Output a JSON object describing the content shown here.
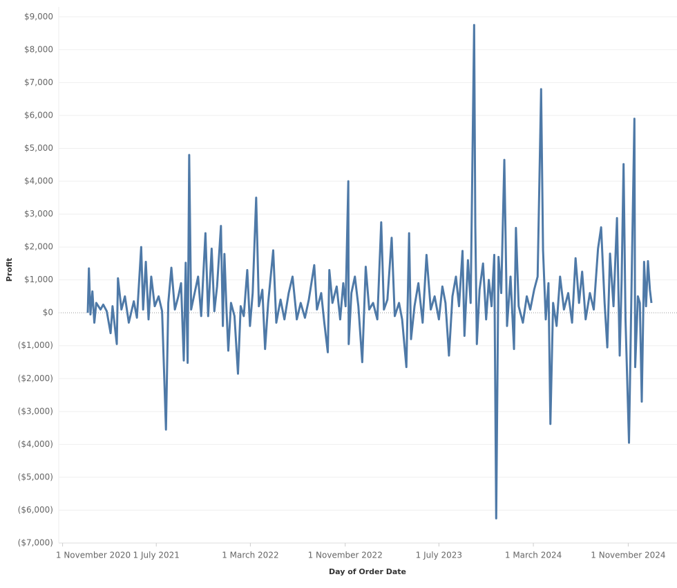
{
  "chart_data": {
    "type": "line",
    "x_label": "Day of Order Date",
    "y_label": "Profit",
    "x": [
      "2021-01-05",
      "2021-01-08",
      "2021-01-12",
      "2021-01-17",
      "2021-01-22",
      "2021-01-27",
      "2021-02-07",
      "2021-02-14",
      "2021-02-23",
      "2021-03-05",
      "2021-03-10",
      "2021-03-21",
      "2021-03-24",
      "2021-04-02",
      "2021-04-11",
      "2021-04-21",
      "2021-05-04",
      "2021-05-12",
      "2021-05-23",
      "2021-05-28",
      "2021-06-04",
      "2021-06-11",
      "2021-06-18",
      "2021-06-27",
      "2021-07-07",
      "2021-07-16",
      "2021-07-26",
      "2021-08-01",
      "2021-08-09",
      "2021-08-18",
      "2021-08-27",
      "2021-09-03",
      "2021-09-10",
      "2021-09-15",
      "2021-09-20",
      "2021-09-24",
      "2021-09-29",
      "2021-10-08",
      "2021-10-17",
      "2021-10-25",
      "2021-11-05",
      "2021-11-12",
      "2021-11-21",
      "2021-11-28",
      "2021-12-05",
      "2021-12-15",
      "2021-12-20",
      "2021-12-24",
      "2021-12-29",
      "2022-01-03",
      "2022-01-10",
      "2022-01-19",
      "2022-01-28",
      "2022-02-04",
      "2022-02-12",
      "2022-02-21",
      "2022-02-28",
      "2022-03-07",
      "2022-03-16",
      "2022-03-23",
      "2022-04-01",
      "2022-04-08",
      "2022-04-16",
      "2022-04-29",
      "2022-05-07",
      "2022-05-18",
      "2022-05-28",
      "2022-06-08",
      "2022-06-18",
      "2022-06-29",
      "2022-07-09",
      "2022-07-20",
      "2022-07-30",
      "2022-08-13",
      "2022-08-20",
      "2022-08-31",
      "2022-09-08",
      "2022-09-17",
      "2022-09-21",
      "2022-09-29",
      "2022-10-10",
      "2022-10-19",
      "2022-10-27",
      "2022-11-02",
      "2022-11-09",
      "2022-11-10",
      "2022-11-17",
      "2022-11-26",
      "2022-12-05",
      "2022-12-15",
      "2022-12-24",
      "2023-01-02",
      "2023-01-12",
      "2023-01-23",
      "2023-02-02",
      "2023-02-09",
      "2023-02-18",
      "2023-03-01",
      "2023-03-09",
      "2023-03-20",
      "2023-03-28",
      "2023-04-08",
      "2023-04-15",
      "2023-04-20",
      "2023-04-29",
      "2023-05-09",
      "2023-05-20",
      "2023-05-30",
      "2023-06-10",
      "2023-06-20",
      "2023-07-01",
      "2023-07-10",
      "2023-07-18",
      "2023-07-27",
      "2023-08-05",
      "2023-08-14",
      "2023-08-22",
      "2023-08-31",
      "2023-09-05",
      "2023-09-14",
      "2023-09-21",
      "2023-09-30",
      "2023-10-03",
      "2023-10-07",
      "2023-10-14",
      "2023-10-23",
      "2023-10-31",
      "2023-11-07",
      "2023-11-14",
      "2023-11-21",
      "2023-11-26",
      "2023-12-02",
      "2023-12-09",
      "2023-12-17",
      "2023-12-24",
      "2024-01-02",
      "2024-01-11",
      "2024-01-16",
      "2024-01-23",
      "2024-02-03",
      "2024-02-13",
      "2024-02-22",
      "2024-03-03",
      "2024-03-12",
      "2024-03-21",
      "2024-03-26",
      "2024-04-02",
      "2024-04-09",
      "2024-04-14",
      "2024-04-21",
      "2024-04-30",
      "2024-05-09",
      "2024-05-19",
      "2024-05-30",
      "2024-06-09",
      "2024-06-18",
      "2024-06-27",
      "2024-07-05",
      "2024-07-14",
      "2024-07-25",
      "2024-08-04",
      "2024-08-15",
      "2024-08-23",
      "2024-09-01",
      "2024-09-08",
      "2024-09-15",
      "2024-09-24",
      "2024-10-03",
      "2024-10-10",
      "2024-10-15",
      "2024-10-20",
      "2024-10-25",
      "2024-11-03",
      "2024-11-10",
      "2024-11-17",
      "2024-11-19",
      "2024-11-26",
      "2024-12-01",
      "2024-12-06",
      "2024-12-12",
      "2024-12-17",
      "2024-12-22",
      "2024-12-27",
      "2024-12-31"
    ],
    "values": [
      0,
      1350,
      -50,
      650,
      -300,
      300,
      100,
      250,
      50,
      -620,
      200,
      -950,
      1050,
      100,
      500,
      -300,
      350,
      -150,
      2000,
      100,
      1550,
      -200,
      1100,
      200,
      500,
      50,
      -3550,
      300,
      1370,
      100,
      500,
      900,
      -1450,
      1520,
      -1520,
      4800,
      100,
      600,
      1100,
      -100,
      2420,
      -100,
      1950,
      50,
      800,
      2640,
      -400,
      1790,
      200,
      -1150,
      300,
      -100,
      -1850,
      200,
      -100,
      1300,
      -400,
      600,
      3500,
      200,
      700,
      -1100,
      300,
      1900,
      -300,
      400,
      -200,
      600,
      1100,
      -200,
      300,
      -150,
      400,
      1450,
      100,
      600,
      -300,
      -1200,
      1300,
      300,
      800,
      -200,
      900,
      200,
      4000,
      -950,
      600,
      1100,
      200,
      -1500,
      1400,
      100,
      300,
      -200,
      2750,
      100,
      400,
      2280,
      -100,
      300,
      -200,
      -1650,
      2420,
      -800,
      200,
      900,
      -300,
      1760,
      100,
      500,
      -200,
      800,
      300,
      -1300,
      500,
      1100,
      200,
      1880,
      -700,
      1600,
      300,
      8750,
      2650,
      -950,
      700,
      1500,
      -200,
      1000,
      200,
      1760,
      -6250,
      1700,
      600,
      4650,
      -400,
      1100,
      -1100,
      2580,
      200,
      -300,
      500,
      100,
      700,
      1100,
      6800,
      1900,
      -200,
      900,
      -3380,
      300,
      -400,
      1100,
      100,
      600,
      -300,
      1660,
      300,
      1250,
      -200,
      600,
      100,
      1950,
      2600,
      300,
      -1050,
      1800,
      200,
      2880,
      -1300,
      1000,
      4520,
      -200,
      -3950,
      1100,
      5900,
      -1650,
      500,
      300,
      -2700,
      1550,
      200,
      1570,
      700,
      300
    ],
    "color": "#4e79a7",
    "xlim": [
      "2020-10-22",
      "2025-03-07"
    ],
    "xticks": [
      {
        "value": "2020-11-01",
        "label": "1 November 2020"
      },
      {
        "value": "2021-07-01",
        "label": "1 July 2021"
      },
      {
        "value": "2022-03-01",
        "label": "1 March 2022"
      },
      {
        "value": "2022-11-01",
        "label": "1 November 2022"
      },
      {
        "value": "2023-07-01",
        "label": "1 July 2023"
      },
      {
        "value": "2024-03-01",
        "label": "1 March 2024"
      },
      {
        "value": "2024-11-01",
        "label": "1 November 2024"
      }
    ],
    "ylim": [
      -7000,
      9300
    ],
    "yticks": [
      {
        "value": -7000,
        "label": "($7,000)"
      },
      {
        "value": -6000,
        "label": "($6,000)"
      },
      {
        "value": -5000,
        "label": "($5,000)"
      },
      {
        "value": -4000,
        "label": "($4,000)"
      },
      {
        "value": -3000,
        "label": "($3,000)"
      },
      {
        "value": -2000,
        "label": "($2,000)"
      },
      {
        "value": -1000,
        "label": "($1,000)"
      },
      {
        "value": 0,
        "label": "$0"
      },
      {
        "value": 1000,
        "label": "$1,000"
      },
      {
        "value": 2000,
        "label": "$2,000"
      },
      {
        "value": 3000,
        "label": "$3,000"
      },
      {
        "value": 4000,
        "label": "$4,000"
      },
      {
        "value": 5000,
        "label": "$5,000"
      },
      {
        "value": 6000,
        "label": "$6,000"
      },
      {
        "value": 7000,
        "label": "$7,000"
      },
      {
        "value": 8000,
        "label": "$8,000"
      },
      {
        "value": 9000,
        "label": "$9,000"
      }
    ],
    "grid": true
  }
}
